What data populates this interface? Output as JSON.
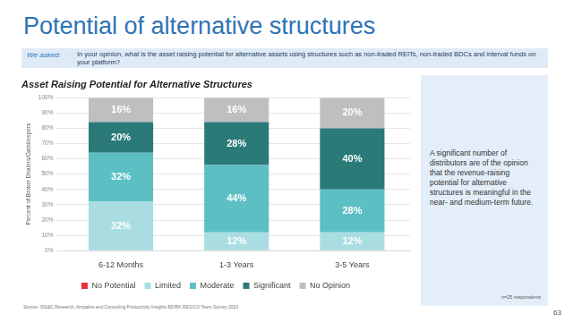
{
  "slide": {
    "title": "Potential of alternative structures",
    "question_label": "We asked:",
    "question": "In your opinion, what is the asset raising potential for alternative assets using structures such as non-traded REITs, non-traded BDCs and interval funds on your platform?",
    "note": "A significant number of distributors are of the opinion that the revenue-raising potential for alternative structures is meaningful in the near- and medium-term future.",
    "source": "Source: ISS&C Research, Ampalize and Consulting Productivity Insights BD/BK RES/CO Team Survey 2023",
    "respondents": "n=25 respondents",
    "page": 63
  },
  "chart_data": {
    "type": "bar",
    "title": "Asset Raising Potential for Alternative Structures",
    "y_label": "Percent of Broker Dealers/Gatekeepers",
    "categories": [
      "6-12 Months",
      "1-3 Years",
      "3-5 Years"
    ],
    "stacked": true,
    "data_labels": true,
    "grid": true,
    "legend": "bottom",
    "ylim": [
      0,
      100
    ],
    "yticks": [
      {
        "value": 0,
        "label": "0%"
      },
      {
        "value": 10,
        "label": "10%"
      },
      {
        "value": 20,
        "label": "20%"
      },
      {
        "value": 30,
        "label": "30%"
      },
      {
        "value": 40,
        "label": "40%"
      },
      {
        "value": 50,
        "label": "50%"
      },
      {
        "value": 60,
        "label": "60%"
      },
      {
        "value": 70,
        "label": "70%"
      },
      {
        "value": 80,
        "label": "80%"
      },
      {
        "value": 90,
        "label": "90%"
      },
      {
        "value": 100,
        "label": "100%"
      }
    ],
    "series": [
      {
        "name": "No Potential",
        "color": "#e8303a",
        "values": [
          0,
          0,
          0
        ],
        "value_labels": [
          null,
          null,
          null
        ]
      },
      {
        "name": "Limited",
        "color": "#a9dde1",
        "values": [
          32,
          12,
          12
        ],
        "value_labels": [
          "32%",
          "12%",
          "12%"
        ]
      },
      {
        "name": "Moderate",
        "color": "#5cbfc4",
        "values": [
          32,
          44,
          28
        ],
        "value_labels": [
          "32%",
          "44%",
          "28%"
        ]
      },
      {
        "name": "Significant",
        "color": "#2b7a78",
        "values": [
          20,
          28,
          40
        ],
        "value_labels": [
          "20%",
          "28%",
          "40%"
        ]
      },
      {
        "name": "No Opinion",
        "color": "#bfbfbf",
        "values": [
          16,
          16,
          20
        ],
        "value_labels": [
          "16%",
          "16%",
          "20%"
        ]
      }
    ]
  }
}
